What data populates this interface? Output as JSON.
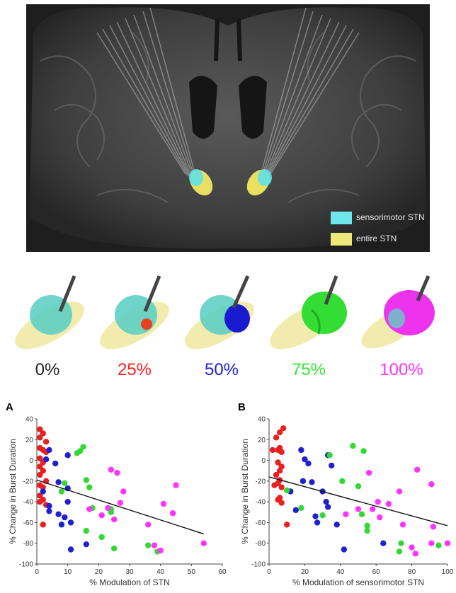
{
  "legend": {
    "items": [
      {
        "label": "sensorimotor STN",
        "color": "#6fe6ea"
      },
      {
        "label": "entire STN",
        "color": "#efe77a"
      }
    ]
  },
  "models": {
    "labels": [
      {
        "text": "0%",
        "color": "#222222"
      },
      {
        "text": "25%",
        "color": "#ff2020"
      },
      {
        "text": "50%",
        "color": "#2020d8"
      },
      {
        "text": "75%",
        "color": "#33e833"
      },
      {
        "text": "100%",
        "color": "#ff33ff"
      }
    ]
  },
  "chart_data": [
    {
      "type": "scatter",
      "panel": "A",
      "xlabel": "% Modulation of STN",
      "ylabel": "% Change in Burst Duration",
      "xlim": [
        0,
        60
      ],
      "ylim": [
        -100,
        40
      ],
      "xticks": [
        "0",
        "10",
        "20",
        "30",
        "40",
        "50",
        "60"
      ],
      "yticks": [
        "40",
        "20",
        "0",
        "-20",
        "-40",
        "-60",
        "-80",
        "-100"
      ],
      "trend": {
        "x": [
          0,
          54
        ],
        "y": [
          -19,
          -71
        ]
      },
      "series": [
        {
          "color": "#e82020",
          "points": [
            [
              1,
              30
            ],
            [
              2,
              26
            ],
            [
              1,
              22
            ],
            [
              3,
              18
            ],
            [
              1,
              12
            ],
            [
              2,
              10
            ],
            [
              3,
              8
            ],
            [
              1,
              2
            ],
            [
              2,
              -2
            ],
            [
              1,
              -6
            ],
            [
              2,
              -10
            ],
            [
              1,
              -14
            ],
            [
              3,
              -20
            ],
            [
              1,
              -24
            ],
            [
              2,
              -26
            ],
            [
              1,
              -34
            ],
            [
              2,
              -38
            ],
            [
              1,
              -40
            ],
            [
              3,
              -43
            ],
            [
              2,
              -62
            ]
          ]
        },
        {
          "color": "#2020d0",
          "points": [
            [
              4,
              10
            ],
            [
              3,
              1
            ],
            [
              6,
              -3
            ],
            [
              10,
              5
            ],
            [
              7,
              -21
            ],
            [
              2,
              -30
            ],
            [
              4,
              -44
            ],
            [
              4,
              -49
            ],
            [
              7,
              -52
            ],
            [
              9,
              -55
            ],
            [
              10,
              -40
            ],
            [
              10,
              -27
            ],
            [
              11,
              -60
            ],
            [
              8,
              -62
            ],
            [
              16,
              -81
            ],
            [
              11,
              -86
            ]
          ]
        },
        {
          "color": "#33d833",
          "points": [
            [
              15,
              13
            ],
            [
              14,
              9
            ],
            [
              13,
              7
            ],
            [
              16,
              -19
            ],
            [
              17,
              -26
            ],
            [
              24,
              -50
            ],
            [
              24,
              -47
            ],
            [
              16,
              -68
            ],
            [
              21,
              -74
            ],
            [
              25,
              -85
            ],
            [
              36,
              -82
            ],
            [
              39,
              -88
            ],
            [
              8,
              -30
            ],
            [
              9,
              -22
            ],
            [
              18,
              -46
            ]
          ]
        },
        {
          "color": "#ff33ff",
          "points": [
            [
              24,
              -9
            ],
            [
              26,
              -12
            ],
            [
              28,
              -30
            ],
            [
              27,
              -41
            ],
            [
              23,
              -46
            ],
            [
              17,
              -47
            ],
            [
              21,
              -53
            ],
            [
              25,
              -57
            ],
            [
              36,
              -62
            ],
            [
              38,
              -82
            ],
            [
              40,
              -87
            ],
            [
              41,
              -42
            ],
            [
              45,
              -24
            ],
            [
              44,
              -51
            ],
            [
              54,
              -80
            ]
          ]
        }
      ]
    },
    {
      "type": "scatter",
      "panel": "B",
      "xlabel": "% Modulation of sensorimotor STN",
      "ylabel": "% Change in Burst Duration",
      "xlim": [
        0,
        100
      ],
      "ylim": [
        -100,
        40
      ],
      "xticks": [
        "0",
        "20",
        "40",
        "60",
        "80",
        "100"
      ],
      "yticks": [
        "40",
        "20",
        "0",
        "-20",
        "-40",
        "-60",
        "-80",
        "-100"
      ],
      "trend": {
        "x": [
          0,
          100
        ],
        "y": [
          -16,
          -63
        ]
      },
      "series": [
        {
          "color": "#e82020",
          "points": [
            [
              8,
              31
            ],
            [
              6,
              27
            ],
            [
              4,
              22
            ],
            [
              2,
              10
            ],
            [
              6,
              12
            ],
            [
              5,
              10
            ],
            [
              7,
              8
            ],
            [
              5,
              -2
            ],
            [
              7,
              -6
            ],
            [
              6,
              -10
            ],
            [
              4,
              -14
            ],
            [
              6,
              -19
            ],
            [
              5,
              -22
            ],
            [
              3,
              -24
            ],
            [
              7,
              -26
            ],
            [
              6,
              -36
            ],
            [
              5,
              -38
            ],
            [
              7,
              -41
            ],
            [
              10,
              -62
            ]
          ]
        },
        {
          "color": "#2020d0",
          "points": [
            [
              18,
              10
            ],
            [
              20,
              1
            ],
            [
              22,
              -3
            ],
            [
              33,
              5
            ],
            [
              19,
              -20
            ],
            [
              24,
              -21
            ],
            [
              30,
              -30
            ],
            [
              33,
              -45
            ],
            [
              26,
              -54
            ],
            [
              27,
              -60
            ],
            [
              38,
              -62
            ],
            [
              32,
              -40
            ],
            [
              35,
              -5
            ],
            [
              42,
              -86
            ],
            [
              64,
              -80
            ],
            [
              12,
              -30
            ],
            [
              15,
              -48
            ]
          ]
        },
        {
          "color": "#33d833",
          "points": [
            [
              47,
              14
            ],
            [
              53,
              9
            ],
            [
              34,
              5
            ],
            [
              41,
              -20
            ],
            [
              50,
              -25
            ],
            [
              52,
              -52
            ],
            [
              55,
              -63
            ],
            [
              55,
              -68
            ],
            [
              30,
              -53
            ],
            [
              73,
              -88
            ],
            [
              74,
              -80
            ],
            [
              95,
              -82
            ],
            [
              10,
              -29
            ],
            [
              18,
              -46
            ]
          ]
        },
        {
          "color": "#ff33ff",
          "points": [
            [
              83,
              -9
            ],
            [
              56,
              -12
            ],
            [
              73,
              -30
            ],
            [
              61,
              -40
            ],
            [
              58,
              -47
            ],
            [
              50,
              -47
            ],
            [
              43,
              -52
            ],
            [
              62,
              -55
            ],
            [
              75,
              -62
            ],
            [
              80,
              -84
            ],
            [
              82,
              -90
            ],
            [
              67,
              -42
            ],
            [
              91,
              -23
            ],
            [
              92,
              -64
            ],
            [
              100,
              -80
            ],
            [
              91,
              -80
            ]
          ]
        }
      ]
    }
  ]
}
